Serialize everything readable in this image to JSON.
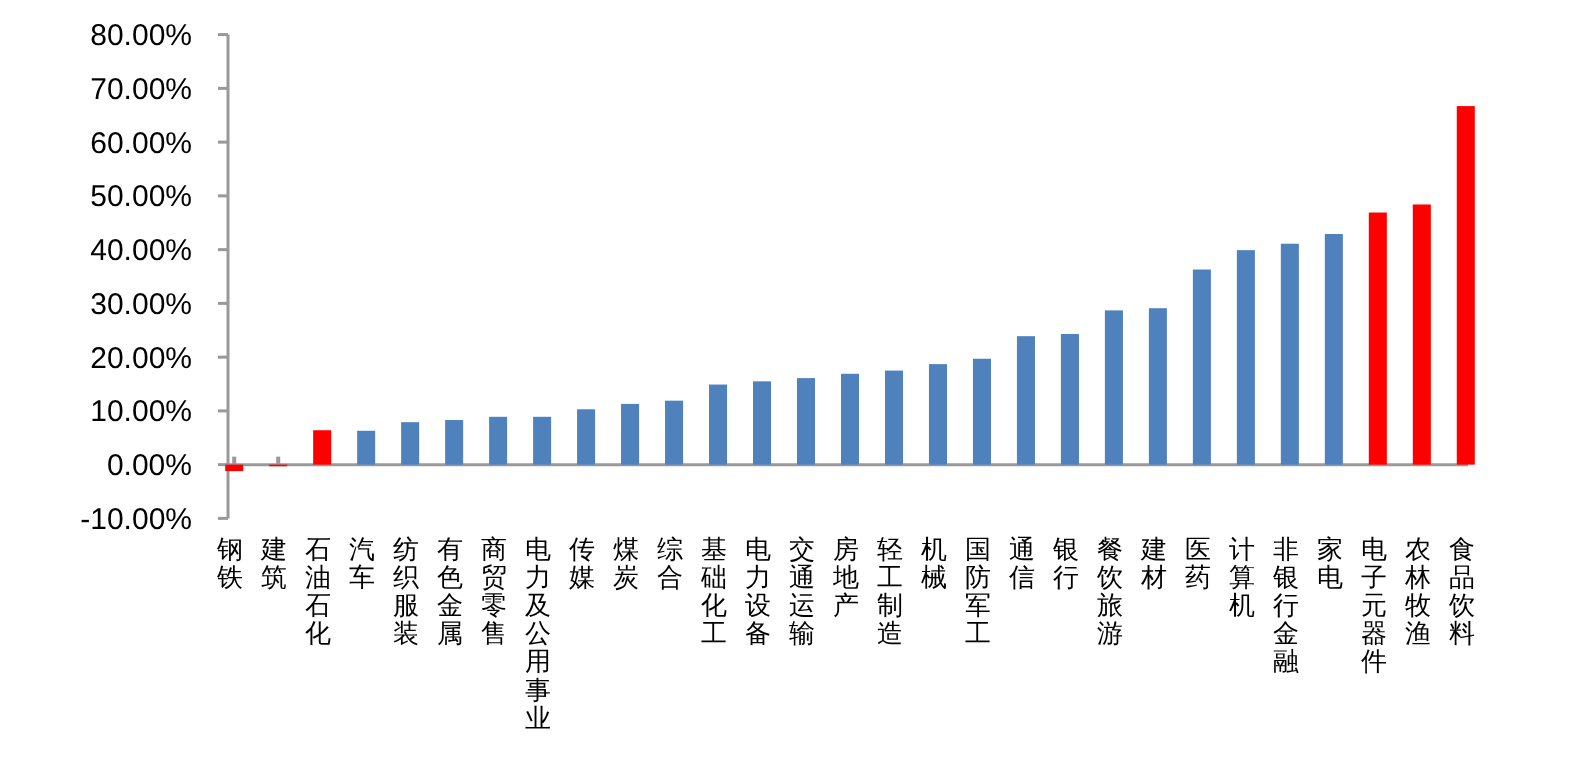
{
  "chart_data": {
    "type": "bar",
    "categories": [
      "钢铁",
      "建筑",
      "石油石化",
      "汽车",
      "纺织服装",
      "有色金属",
      "商贸零售",
      "电力及公用事业",
      "传媒",
      "煤炭",
      "综合",
      "基础化工",
      "电力设备",
      "交通运输",
      "房地产",
      "轻工制造",
      "机械",
      "国防军工",
      "通信",
      "银行",
      "餐饮旅游",
      "建材",
      "医药",
      "计算机",
      "非银行金融",
      "家电",
      "电子元器件",
      "农林牧渔",
      "食品饮料"
    ],
    "values": [
      -1.2,
      -0.3,
      6.4,
      6.3,
      7.9,
      8.3,
      8.9,
      8.9,
      10.3,
      11.3,
      11.9,
      14.9,
      15.5,
      16.1,
      16.9,
      17.5,
      18.7,
      19.7,
      23.9,
      24.3,
      28.7,
      29.1,
      36.3,
      39.9,
      41.1,
      42.9,
      46.9,
      48.4,
      66.7
    ],
    "colors": [
      "#ff0000",
      "#ff0000",
      "#ff0000",
      "#4f81bd",
      "#4f81bd",
      "#4f81bd",
      "#4f81bd",
      "#4f81bd",
      "#4f81bd",
      "#4f81bd",
      "#4f81bd",
      "#4f81bd",
      "#4f81bd",
      "#4f81bd",
      "#4f81bd",
      "#4f81bd",
      "#4f81bd",
      "#4f81bd",
      "#4f81bd",
      "#4f81bd",
      "#4f81bd",
      "#4f81bd",
      "#4f81bd",
      "#4f81bd",
      "#4f81bd",
      "#4f81bd",
      "#ff0000",
      "#ff0000",
      "#ff0000"
    ],
    "ylim": [
      -10,
      80
    ],
    "yticks": [
      {
        "value": -10,
        "label": "-10.00%"
      },
      {
        "value": 0,
        "label": "0.00%"
      },
      {
        "value": 10,
        "label": "10.00%"
      },
      {
        "value": 20,
        "label": "20.00%"
      },
      {
        "value": 30,
        "label": "30.00%"
      },
      {
        "value": 40,
        "label": "40.00%"
      },
      {
        "value": 50,
        "label": "50.00%"
      },
      {
        "value": 60,
        "label": "60.00%"
      },
      {
        "value": 70,
        "label": "70.00%"
      },
      {
        "value": 80,
        "label": "80.00%"
      }
    ]
  }
}
